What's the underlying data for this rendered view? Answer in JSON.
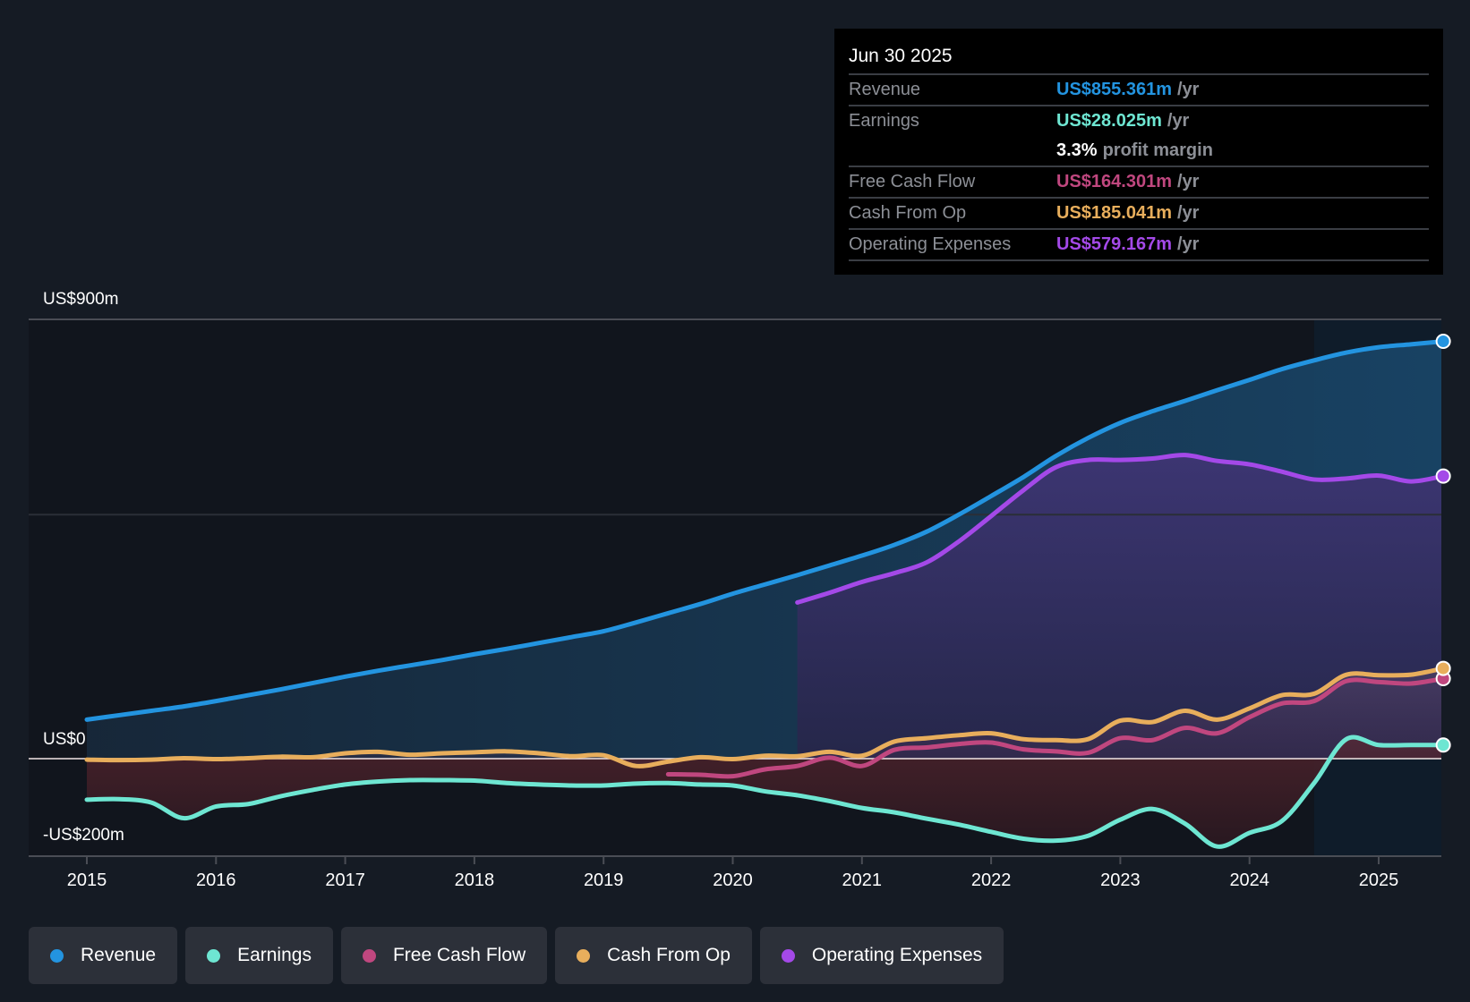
{
  "tooltip": {
    "date": "Jun 30 2025",
    "rows": [
      {
        "label": "Revenue",
        "value": "US$855.361m",
        "unit": "/yr",
        "color": "#2394e0"
      },
      {
        "label": "Earnings",
        "value": "US$28.025m",
        "unit": "/yr",
        "color": "#6ee6d2"
      },
      {
        "label": "",
        "value": "3.3%",
        "unit": "profit margin",
        "color": "#ffffff"
      },
      {
        "label": "Free Cash Flow",
        "value": "US$164.301m",
        "unit": "/yr",
        "color": "#c0477f"
      },
      {
        "label": "Cash From Op",
        "value": "US$185.041m",
        "unit": "/yr",
        "color": "#e8ae5c"
      },
      {
        "label": "Operating Expenses",
        "value": "US$579.167m",
        "unit": "/yr",
        "color": "#a449e8"
      }
    ]
  },
  "legend": [
    {
      "label": "Revenue",
      "color": "#2394e0"
    },
    {
      "label": "Earnings",
      "color": "#6ee6d2"
    },
    {
      "label": "Free Cash Flow",
      "color": "#c0477f"
    },
    {
      "label": "Cash From Op",
      "color": "#e8ae5c"
    },
    {
      "label": "Operating Expenses",
      "color": "#a449e8"
    }
  ],
  "chart_data": {
    "type": "line",
    "title": "",
    "xlabel": "",
    "ylabel": "",
    "ylim": [
      -200,
      900
    ],
    "xlim": [
      2015,
      2025.5
    ],
    "y_tick_labels": [
      {
        "value": 900,
        "label": "US$900m"
      },
      {
        "value": 0,
        "label": "US$0"
      },
      {
        "value": -200,
        "label": "-US$200m"
      }
    ],
    "gridlines": [
      900,
      500,
      0
    ],
    "x_tick_labels": [
      "2015",
      "2016",
      "2017",
      "2018",
      "2019",
      "2020",
      "2021",
      "2022",
      "2023",
      "2024",
      "2025"
    ],
    "highlight_from": 2024.5,
    "legend_position": "bottom-left",
    "series": [
      {
        "name": "Revenue",
        "color": "#2394e0",
        "x": [
          2015,
          2015.25,
          2015.5,
          2015.75,
          2016,
          2016.25,
          2016.5,
          2016.75,
          2017,
          2017.25,
          2017.5,
          2017.75,
          2018,
          2018.25,
          2018.5,
          2018.75,
          2019,
          2019.25,
          2019.5,
          2019.75,
          2020,
          2020.25,
          2020.5,
          2020.75,
          2021,
          2021.25,
          2021.5,
          2021.75,
          2022,
          2022.25,
          2022.5,
          2022.75,
          2023,
          2023.25,
          2023.5,
          2023.75,
          2024,
          2024.25,
          2024.5,
          2024.75,
          2025,
          2025.25,
          2025.5
        ],
        "values": [
          80,
          89,
          98,
          107,
          118,
          130,
          142,
          155,
          168,
          180,
          191,
          202,
          214,
          225,
          237,
          249,
          261,
          279,
          298,
          317,
          338,
          357,
          376,
          396,
          416,
          438,
          465,
          500,
          538,
          577,
          620,
          657,
          688,
          712,
          733,
          755,
          776,
          798,
          816,
          832,
          843,
          849,
          855
        ]
      },
      {
        "name": "Earnings",
        "color": "#6ee6d2",
        "x": [
          2015,
          2015.25,
          2015.5,
          2015.75,
          2016,
          2016.25,
          2016.5,
          2016.75,
          2017,
          2017.25,
          2017.5,
          2017.75,
          2018,
          2018.25,
          2018.5,
          2018.75,
          2019,
          2019.25,
          2019.5,
          2019.75,
          2020,
          2020.25,
          2020.5,
          2020.75,
          2021,
          2021.25,
          2021.5,
          2021.75,
          2022,
          2022.25,
          2022.5,
          2022.75,
          2023,
          2023.25,
          2023.5,
          2023.75,
          2024,
          2024.25,
          2024.5,
          2024.75,
          2025,
          2025.25,
          2025.5
        ],
        "values": [
          -84,
          -83,
          -90,
          -122,
          -98,
          -93,
          -77,
          -64,
          -53,
          -47,
          -44,
          -44,
          -45,
          -50,
          -53,
          -55,
          -55,
          -51,
          -50,
          -53,
          -55,
          -67,
          -75,
          -87,
          -101,
          -110,
          -123,
          -135,
          -150,
          -164,
          -168,
          -158,
          -125,
          -103,
          -133,
          -180,
          -152,
          -128,
          -50,
          40,
          28,
          28,
          28
        ]
      },
      {
        "name": "Free Cash Flow",
        "color": "#c0477f",
        "x": [
          2019.5,
          2019.75,
          2020,
          2020.25,
          2020.5,
          2020.75,
          2021,
          2021.25,
          2021.5,
          2021.75,
          2022,
          2022.25,
          2022.5,
          2022.75,
          2023,
          2023.25,
          2023.5,
          2023.75,
          2024,
          2024.25,
          2024.5,
          2024.75,
          2025,
          2025.25,
          2025.5
        ],
        "values": [
          -32,
          -33,
          -36,
          -22,
          -15,
          2,
          -15,
          18,
          23,
          30,
          33,
          19,
          15,
          12,
          42,
          38,
          63,
          52,
          85,
          113,
          118,
          159,
          157,
          154,
          164
        ]
      },
      {
        "name": "Cash From Op",
        "color": "#e8ae5c",
        "x": [
          2015,
          2015.25,
          2015.5,
          2015.75,
          2016,
          2016.25,
          2016.5,
          2016.75,
          2017,
          2017.25,
          2017.5,
          2017.75,
          2018,
          2018.25,
          2018.5,
          2018.75,
          2019,
          2019.25,
          2019.5,
          2019.75,
          2020,
          2020.25,
          2020.5,
          2020.75,
          2021,
          2021.25,
          2021.5,
          2021.75,
          2022,
          2022.25,
          2022.5,
          2022.75,
          2023,
          2023.25,
          2023.5,
          2023.75,
          2024,
          2024.25,
          2024.5,
          2024.75,
          2025,
          2025.25,
          2025.5
        ],
        "values": [
          -2,
          -3,
          -2,
          1,
          -1,
          1,
          4,
          3,
          11,
          14,
          8,
          11,
          13,
          15,
          11,
          5,
          7,
          -15,
          -6,
          3,
          -1,
          6,
          5,
          14,
          6,
          35,
          42,
          48,
          52,
          40,
          38,
          40,
          78,
          75,
          98,
          80,
          103,
          130,
          133,
          172,
          171,
          172,
          185
        ]
      },
      {
        "name": "Operating Expenses",
        "color": "#a449e8",
        "x": [
          2020.5,
          2020.75,
          2021,
          2021.25,
          2021.5,
          2021.75,
          2022,
          2022.25,
          2022.5,
          2022.75,
          2023,
          2023.25,
          2023.5,
          2023.75,
          2024,
          2024.25,
          2024.5,
          2024.75,
          2025,
          2025.25,
          2025.5
        ],
        "values": [
          320,
          340,
          362,
          380,
          402,
          445,
          497,
          550,
          597,
          612,
          612,
          615,
          622,
          610,
          603,
          588,
          572,
          574,
          580,
          568,
          579
        ]
      }
    ]
  }
}
